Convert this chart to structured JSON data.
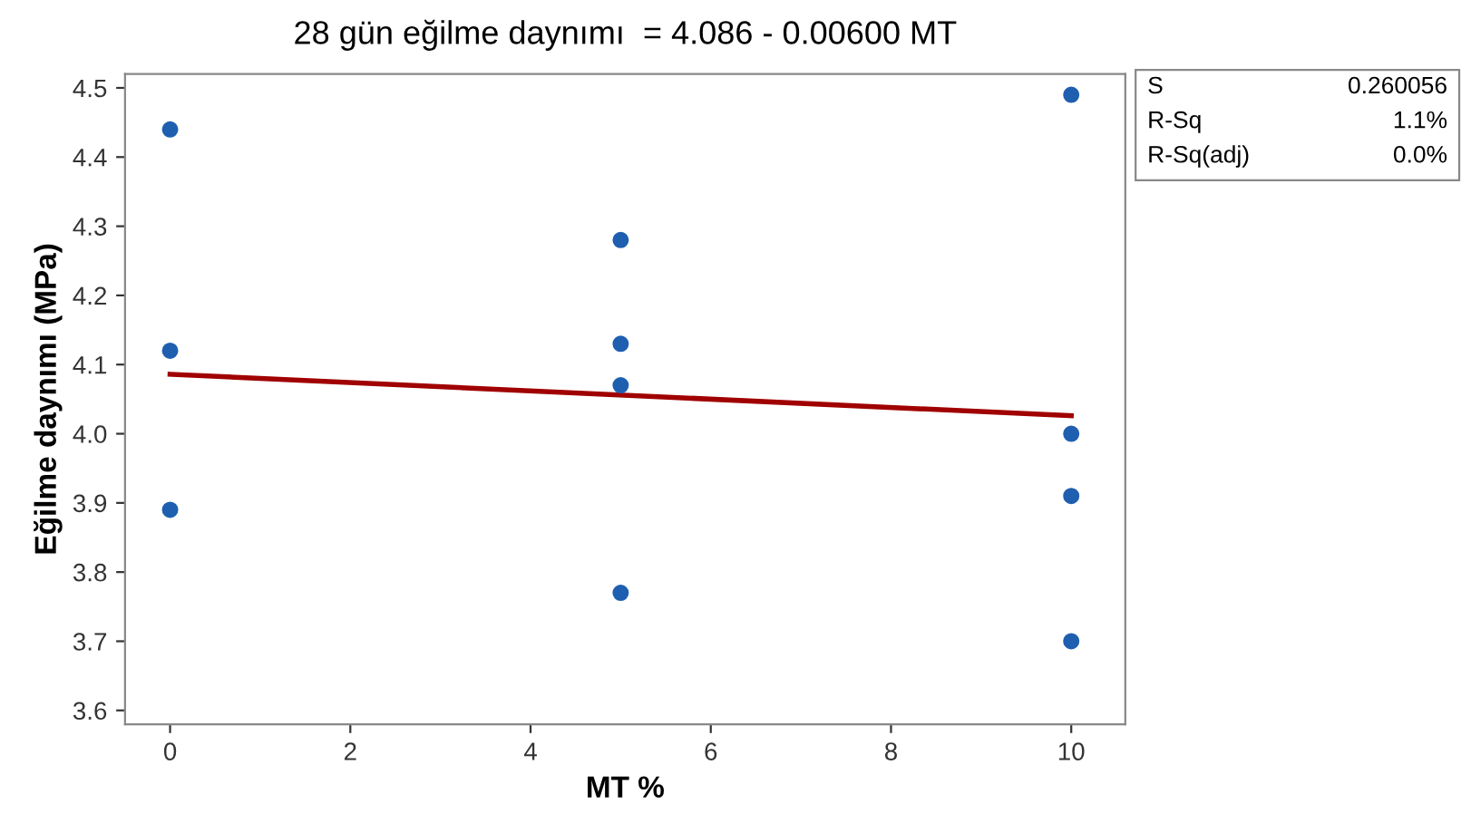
{
  "chart_data": {
    "type": "scatter",
    "title": "28 gün eğilme daynımı  = 4.086 - 0.00600 MT",
    "xlabel": "MT %",
    "ylabel": "Eğilme daynımı (MPa)",
    "series": [
      {
        "marker": "circle",
        "color": "#1f5fb0",
        "x": [
          0,
          0,
          0,
          5,
          5,
          5,
          5,
          10,
          10,
          10,
          10
        ],
        "values": [
          4.44,
          4.12,
          3.89,
          4.28,
          4.13,
          4.07,
          3.77,
          4.49,
          4.0,
          3.91,
          3.7
        ]
      },
      {
        "type": "line",
        "marker": "none",
        "color": "#a00000",
        "x": [
          0,
          10
        ],
        "values": [
          4.086,
          4.026
        ]
      }
    ],
    "xlim": [
      -0.5,
      10.6
    ],
    "ylim": [
      3.58,
      4.52
    ],
    "xticks": [
      0,
      2,
      4,
      6,
      8,
      10
    ],
    "yticks": [
      3.6,
      3.7,
      3.8,
      3.9,
      {
        "value": 4.0,
        "label": "4.0"
      },
      4.1,
      4.2,
      4.3,
      4.4,
      4.5
    ],
    "grid": false,
    "annotations": [
      "S",
      "0.260056",
      "R-Sq",
      "1.1%",
      "R-Sq(adj)",
      "0.0%"
    ]
  }
}
